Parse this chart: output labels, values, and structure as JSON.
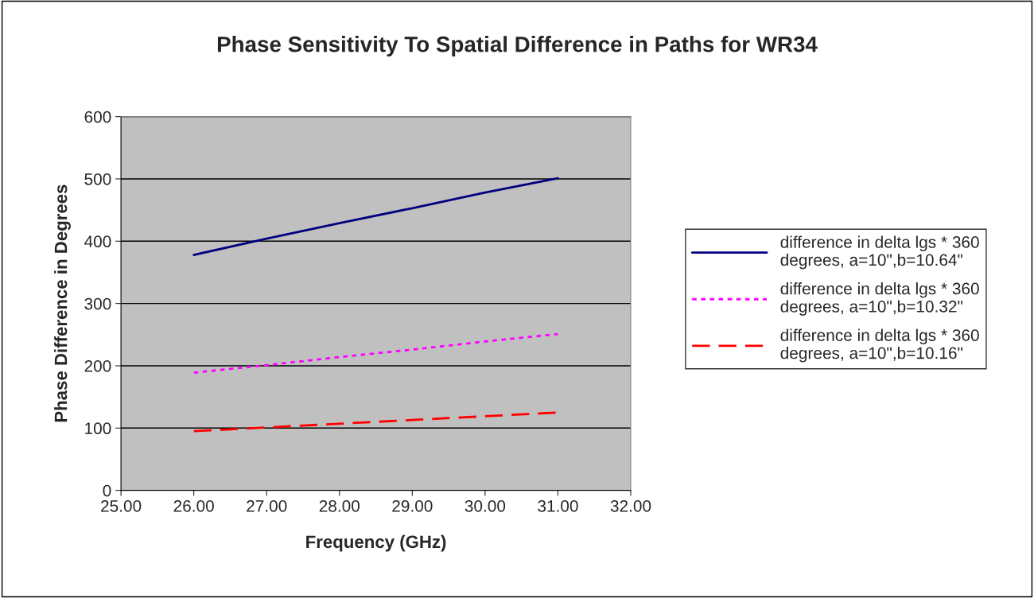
{
  "chart_data": {
    "type": "line",
    "title": "Phase Sensitivity To Spatial Difference in Paths for WR34",
    "xlabel": "Frequency (GHz)",
    "ylabel": "Phase Difference in Degrees",
    "x": [
      26,
      27,
      28,
      29,
      30,
      31
    ],
    "series": [
      {
        "name": "difference in delta lgs * 360 degrees, a=10\",b=10.64\"",
        "color": "#000080",
        "line_style": "solid",
        "values": [
          378,
          404,
          429,
          453,
          478,
          501
        ]
      },
      {
        "name": "difference in delta lgs * 360 degrees, a=10\",b=10.32\"",
        "color": "#ff00ff",
        "line_style": "dotted",
        "values": [
          189,
          201,
          214,
          226,
          239,
          251
        ]
      },
      {
        "name": "difference in delta lgs * 360 degrees, a=10\",b=10.16\"",
        "color": "#ff0000",
        "line_style": "dashed",
        "values": [
          95,
          101,
          107,
          113,
          119,
          125
        ]
      }
    ],
    "xlim": [
      25,
      32
    ],
    "xticks": [
      {
        "value": 25,
        "label": "25.00"
      },
      {
        "value": 26,
        "label": "26.00"
      },
      {
        "value": 27,
        "label": "27.00"
      },
      {
        "value": 28,
        "label": "28.00"
      },
      {
        "value": 29,
        "label": "29.00"
      },
      {
        "value": 30,
        "label": "30.00"
      },
      {
        "value": 31,
        "label": "31.00"
      },
      {
        "value": 32,
        "label": "32.00"
      }
    ],
    "ylim": [
      0,
      600
    ],
    "yticks": [
      0,
      100,
      200,
      300,
      400,
      500,
      600
    ],
    "grid": "y",
    "legend": "right",
    "marker": "none"
  }
}
